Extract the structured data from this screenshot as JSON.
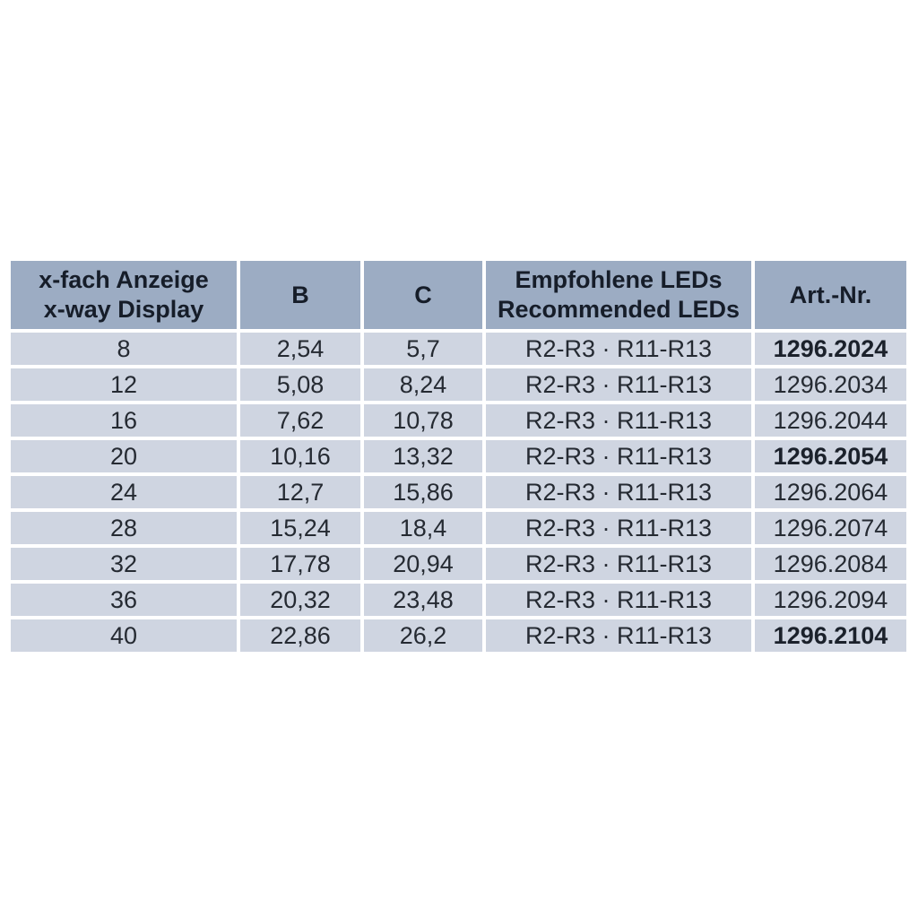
{
  "page": {
    "background_color": "#ffffff"
  },
  "table": {
    "colors": {
      "header_background": "#9cacc3",
      "row_background": "#cfd5e1",
      "separator": "#ffffff",
      "header_text": "#161d29",
      "cell_text": "#252a32"
    },
    "header": {
      "col1": {
        "line1": "x-fach Anzeige",
        "line2": "x-way Display"
      },
      "col2": {
        "line1": "B"
      },
      "col3": {
        "line1": "C"
      },
      "col4": {
        "line1": "Empfohlene LEDs",
        "line2": "Recommended LEDs"
      },
      "col5": {
        "line1": "Art.-Nr."
      }
    },
    "rows": [
      {
        "display": "8",
        "b": "2,54",
        "c": "5,7",
        "leds": "R2-R3 · R11-R13",
        "artnr": "1296.2024",
        "artnr_bold": true
      },
      {
        "display": "12",
        "b": "5,08",
        "c": "8,24",
        "leds": "R2-R3 · R11-R13",
        "artnr": "1296.2034",
        "artnr_bold": false
      },
      {
        "display": "16",
        "b": "7,62",
        "c": "10,78",
        "leds": "R2-R3 · R11-R13",
        "artnr": "1296.2044",
        "artnr_bold": false
      },
      {
        "display": "20",
        "b": "10,16",
        "c": "13,32",
        "leds": "R2-R3 · R11-R13",
        "artnr": "1296.2054",
        "artnr_bold": true
      },
      {
        "display": "24",
        "b": "12,7",
        "c": "15,86",
        "leds": "R2-R3 · R11-R13",
        "artnr": "1296.2064",
        "artnr_bold": false
      },
      {
        "display": "28",
        "b": "15,24",
        "c": "18,4",
        "leds": "R2-R3 · R11-R13",
        "artnr": "1296.2074",
        "artnr_bold": false
      },
      {
        "display": "32",
        "b": "17,78",
        "c": "20,94",
        "leds": "R2-R3 · R11-R13",
        "artnr": "1296.2084",
        "artnr_bold": false
      },
      {
        "display": "36",
        "b": "20,32",
        "c": "23,48",
        "leds": "R2-R3 · R11-R13",
        "artnr": "1296.2094",
        "artnr_bold": false
      },
      {
        "display": "40",
        "b": "22,86",
        "c": "26,2",
        "leds": "R2-R3 · R11-R13",
        "artnr": "1296.2104",
        "artnr_bold": true
      }
    ]
  }
}
